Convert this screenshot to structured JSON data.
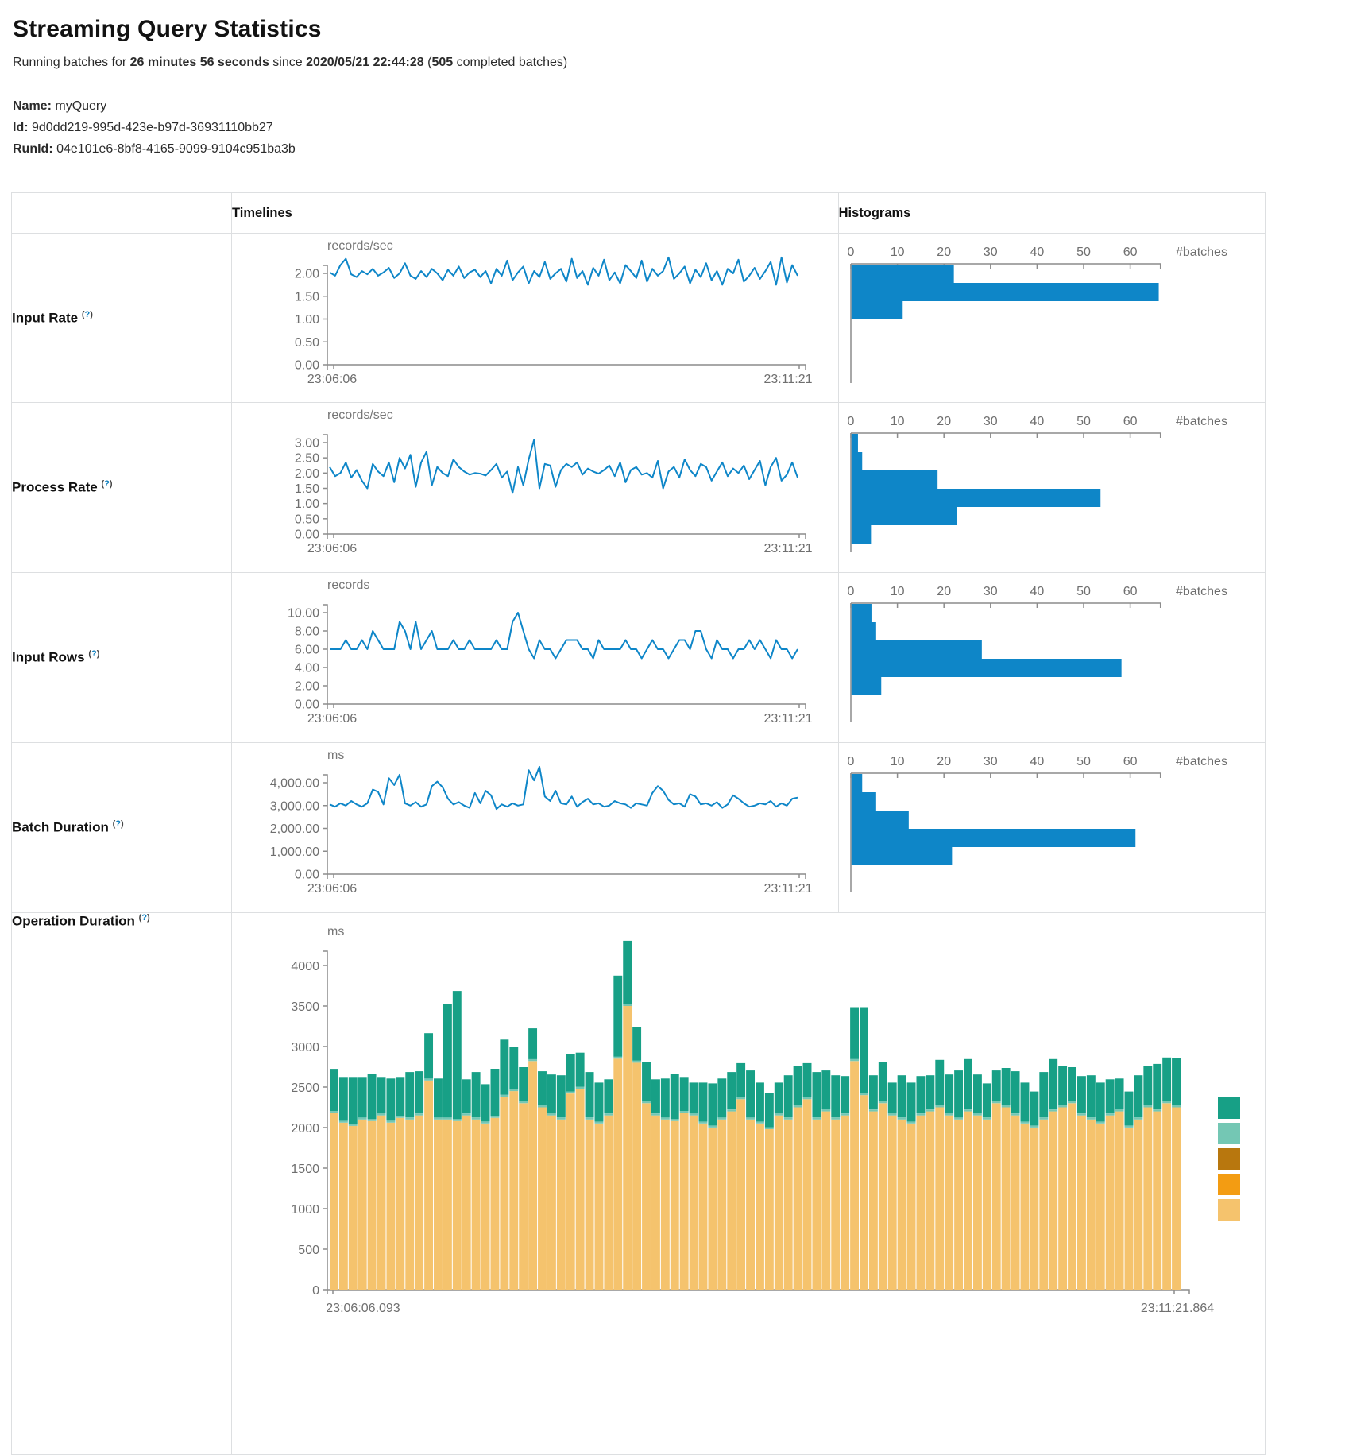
{
  "header": {
    "title": "Streaming Query Statistics",
    "running": {
      "prefix": "Running batches for ",
      "duration": "26 minutes 56 seconds",
      "since": " since ",
      "start_time": "2020/05/21 22:44:28",
      "open_paren": " (",
      "count": "505",
      "suffix": " completed batches)"
    },
    "meta": {
      "name_label": "Name:",
      "name": "myQuery",
      "id_label": "Id:",
      "id": "9d0dd219-995d-423e-b97d-36931110bb27",
      "runid_label": "RunId:",
      "runid": "04e101e6-8bf8-4165-9099-9104c951ba3b"
    }
  },
  "table": {
    "columns": {
      "timelines": "Timelines",
      "histograms": "Histograms"
    },
    "tooltip": {
      "open": "(",
      "q": "?",
      "close": ")"
    },
    "rows": [
      {
        "label": "Input Rate"
      },
      {
        "label": "Process Rate"
      },
      {
        "label": "Input Rows"
      },
      {
        "label": "Batch Duration"
      },
      {
        "label": "Operation Duration"
      }
    ]
  },
  "colors": {
    "accent": "#0e86c8",
    "axis": "#8c8c8c",
    "tick_text": "#6f6f6f",
    "bar_base": "#f5c36d",
    "bar_sliver": "#74c7b4",
    "bar_top": "#17a086",
    "legend": [
      "#17a086",
      "#74c7b4",
      "#b8770e",
      "#f39c12",
      "#f5c36d"
    ]
  },
  "chart_data": [
    {
      "id": "tl-input-rate",
      "type": "line",
      "title": "Input Rate timeline",
      "unit": "records/sec",
      "x_labels": [
        "23:06:06",
        "23:11:21"
      ],
      "y_ticks": [
        {
          "v": 0,
          "label": "0.00"
        },
        {
          "v": 0.5,
          "label": "0.50"
        },
        {
          "v": 1,
          "label": "1.00"
        },
        {
          "v": 1.5,
          "label": "1.50"
        },
        {
          "v": 2,
          "label": "2.00"
        }
      ],
      "ylim": [
        0,
        2.35
      ],
      "values": [
        2.02,
        1.95,
        2.18,
        2.32,
        1.98,
        1.92,
        2.05,
        1.98,
        2.1,
        1.95,
        2.02,
        2.12,
        1.9,
        2.0,
        2.22,
        1.95,
        1.88,
        2.05,
        1.92,
        2.1,
        2.0,
        1.85,
        2.08,
        1.95,
        2.15,
        1.9,
        2.02,
        2.08,
        1.92,
        2.05,
        1.78,
        2.1,
        1.95,
        2.28,
        1.85,
        2.02,
        2.15,
        1.78,
        2.05,
        1.92,
        2.25,
        1.88,
        2.0,
        2.1,
        1.82,
        2.32,
        1.9,
        2.05,
        1.75,
        2.12,
        1.95,
        2.3,
        1.85,
        2.02,
        1.78,
        2.18,
        2.05,
        1.9,
        2.28,
        1.82,
        2.1,
        1.95,
        2.05,
        2.35,
        1.88,
        2.0,
        2.15,
        1.78,
        2.08,
        1.92,
        2.22,
        1.85,
        2.05,
        1.75,
        2.1,
        2.0,
        2.3,
        1.82,
        1.95,
        2.12,
        1.88,
        2.05,
        2.25,
        1.75,
        2.35,
        1.8,
        2.18,
        1.95
      ]
    },
    {
      "id": "hist-input-rate",
      "type": "bar",
      "orientation": "horizontal",
      "title": "Input Rate histogram",
      "xlabel": "#batches",
      "x_ticks": [
        0,
        10,
        20,
        30,
        40,
        50,
        60
      ],
      "xlim": [
        0,
        66.5
      ],
      "bins": [
        22,
        66,
        11
      ]
    },
    {
      "id": "tl-process-rate",
      "type": "line",
      "title": "Process Rate timeline",
      "unit": "records/sec",
      "x_labels": [
        "23:06:06",
        "23:11:21"
      ],
      "y_ticks": [
        {
          "v": 0,
          "label": "0.00"
        },
        {
          "v": 0.5,
          "label": "0.50"
        },
        {
          "v": 1,
          "label": "1.00"
        },
        {
          "v": 1.5,
          "label": "1.50"
        },
        {
          "v": 2,
          "label": "2.00"
        },
        {
          "v": 2.5,
          "label": "2.50"
        },
        {
          "v": 3,
          "label": "3.00"
        }
      ],
      "ylim": [
        0,
        3.15
      ],
      "values": [
        2.2,
        1.9,
        2.0,
        2.35,
        1.85,
        2.1,
        1.75,
        1.5,
        2.3,
        2.05,
        1.9,
        2.35,
        1.7,
        2.5,
        2.15,
        2.6,
        1.55,
        2.35,
        2.7,
        1.6,
        2.2,
        2.0,
        1.9,
        2.45,
        2.2,
        2.05,
        1.95,
        2.0,
        1.98,
        1.92,
        2.1,
        2.3,
        1.85,
        2.05,
        1.35,
        2.2,
        1.6,
        2.45,
        3.1,
        1.5,
        2.3,
        2.25,
        1.55,
        2.1,
        2.3,
        2.2,
        2.35,
        1.95,
        2.15,
        2.05,
        1.98,
        2.1,
        2.25,
        1.9,
        2.35,
        1.7,
        2.1,
        2.2,
        1.95,
        2.0,
        1.85,
        2.4,
        1.5,
        2.05,
        2.2,
        1.85,
        2.45,
        2.1,
        1.9,
        2.3,
        2.2,
        1.75,
        2.05,
        2.35,
        1.9,
        2.15,
        2.0,
        2.25,
        1.8,
        2.1,
        2.4,
        1.6,
        2.2,
        2.5,
        1.75,
        1.95,
        2.35,
        1.85
      ]
    },
    {
      "id": "hist-process-rate",
      "type": "bar",
      "orientation": "horizontal",
      "title": "Process Rate histogram",
      "xlabel": "#batches",
      "x_ticks": [
        0,
        10,
        20,
        30,
        40,
        50,
        60
      ],
      "xlim": [
        0,
        66.5
      ],
      "bins": [
        1.4,
        2.3,
        18.5,
        53.5,
        22.7,
        4.2
      ]
    },
    {
      "id": "tl-input-rows",
      "type": "line",
      "title": "Input Rows timeline",
      "unit": "records",
      "x_labels": [
        "23:06:06",
        "23:11:21"
      ],
      "y_ticks": [
        {
          "v": 0,
          "label": "0.00"
        },
        {
          "v": 2,
          "label": "2.00"
        },
        {
          "v": 4,
          "label": "4.00"
        },
        {
          "v": 6,
          "label": "6.00"
        },
        {
          "v": 8,
          "label": "8.00"
        },
        {
          "v": 10,
          "label": "10.00"
        }
      ],
      "ylim": [
        0,
        10
      ],
      "values": [
        6,
        6,
        6,
        7,
        6,
        6,
        7,
        6,
        8,
        7,
        6,
        6,
        6,
        9,
        8,
        6,
        9,
        6,
        7,
        8,
        6,
        6,
        6,
        7,
        6,
        6,
        7,
        6,
        6,
        6,
        6,
        7,
        6,
        6,
        9,
        10,
        8,
        6,
        5,
        7,
        6,
        6,
        5,
        6,
        7,
        7,
        7,
        6,
        6,
        5,
        7,
        6,
        6,
        6,
        6,
        7,
        6,
        6,
        5,
        6,
        7,
        6,
        6,
        5,
        6,
        7,
        7,
        6,
        8,
        8,
        6,
        5,
        7,
        6,
        6,
        5,
        6,
        6,
        7,
        6,
        7,
        6,
        5,
        7,
        6,
        6,
        5,
        6
      ]
    },
    {
      "id": "hist-input-rows",
      "type": "bar",
      "orientation": "horizontal",
      "title": "Input Rows histogram",
      "xlabel": "#batches",
      "x_ticks": [
        0,
        10,
        20,
        30,
        40,
        50,
        60
      ],
      "xlim": [
        0,
        66.5
      ],
      "bins": [
        4.3,
        5.3,
        28,
        58,
        6.4
      ]
    },
    {
      "id": "tl-batch-duration",
      "type": "line",
      "title": "Batch Duration timeline",
      "unit": "ms",
      "x_labels": [
        "23:06:06",
        "23:11:21"
      ],
      "y_ticks": [
        {
          "v": 0,
          "label": "0.00"
        },
        {
          "v": 1000,
          "label": "1,000.00"
        },
        {
          "v": 2000,
          "label": "2,000.00"
        },
        {
          "v": 3000,
          "label": "3,000.00"
        },
        {
          "v": 4000,
          "label": "4,000.00"
        }
      ],
      "ylim": [
        0,
        4700
      ],
      "values": [
        3050,
        2950,
        3100,
        3000,
        3200,
        3050,
        2950,
        3100,
        3700,
        3600,
        3050,
        4200,
        3900,
        4350,
        3100,
        3000,
        3150,
        2950,
        3050,
        3850,
        4050,
        3800,
        3300,
        3050,
        3150,
        3000,
        2900,
        3550,
        3100,
        3650,
        3450,
        2850,
        3050,
        2950,
        3100,
        3000,
        3050,
        4550,
        4100,
        4700,
        3400,
        3200,
        3650,
        3100,
        3050,
        3400,
        2950,
        3150,
        3300,
        3050,
        3100,
        2950,
        3000,
        3200,
        3100,
        3050,
        2900,
        3100,
        3050,
        3000,
        3550,
        3850,
        3650,
        3250,
        3050,
        3100,
        2950,
        3500,
        3400,
        3050,
        3100,
        3000,
        3150,
        2900,
        3050,
        3450,
        3300,
        3100,
        2950,
        3000,
        3100,
        3050,
        3200,
        2950,
        3100,
        3000,
        3300,
        3350
      ]
    },
    {
      "id": "hist-batch-duration",
      "type": "bar",
      "orientation": "horizontal",
      "title": "Batch Duration histogram",
      "xlabel": "#batches",
      "x_ticks": [
        0,
        10,
        20,
        30,
        40,
        50,
        60
      ],
      "xlim": [
        0,
        66.5
      ],
      "bins": [
        2.3,
        5.3,
        12.3,
        61,
        21.6
      ]
    },
    {
      "id": "op-duration",
      "type": "stacked-bar",
      "title": "Operation Duration",
      "unit": "ms",
      "x_labels": [
        "23:06:06.093",
        "23:11:21.864"
      ],
      "y_ticks": [
        {
          "v": 0,
          "label": "0"
        },
        {
          "v": 500,
          "label": "500"
        },
        {
          "v": 1000,
          "label": "1000"
        },
        {
          "v": 1500,
          "label": "1500"
        },
        {
          "v": 2000,
          "label": "2000"
        },
        {
          "v": 2500,
          "label": "2500"
        },
        {
          "v": 3000,
          "label": "3000"
        },
        {
          "v": 3500,
          "label": "3500"
        },
        {
          "v": 4000,
          "label": "4000"
        }
      ],
      "ylim": [
        0,
        4350
      ],
      "legend_swatches": 5,
      "segments": {
        "base": [
          2180,
          2060,
          2020,
          2100,
          2080,
          2150,
          2060,
          2120,
          2100,
          2150,
          2580,
          2100,
          2100,
          2080,
          2150,
          2100,
          2050,
          2120,
          2380,
          2450,
          2300,
          2820,
          2250,
          2150,
          2100,
          2420,
          2480,
          2100,
          2050,
          2150,
          2850,
          3500,
          2800,
          2300,
          2150,
          2100,
          2080,
          2180,
          2150,
          2050,
          2000,
          2100,
          2200,
          2350,
          2100,
          2050,
          1980,
          2150,
          2100,
          2250,
          2350,
          2100,
          2200,
          2100,
          2150,
          2820,
          2400,
          2200,
          2300,
          2150,
          2100,
          2050,
          2150,
          2200,
          2250,
          2150,
          2100,
          2200,
          2150,
          2100,
          2300,
          2250,
          2150,
          2050,
          2000,
          2100,
          2200,
          2250,
          2300,
          2150,
          2100,
          2050,
          2150,
          2200,
          2000,
          2100,
          2250,
          2200,
          2300,
          2250
        ],
        "sliver": 25,
        "top": [
          520,
          540,
          580,
          500,
          560,
          450,
          520,
          480,
          560,
          520,
          560,
          480,
          1400,
          1580,
          420,
          560,
          460,
          580,
          680,
          520,
          420,
          380,
          420,
          480,
          520,
          460,
          420,
          560,
          480,
          420,
          1000,
          780,
          420,
          480,
          420,
          480,
          560,
          420,
          380,
          480,
          520,
          480,
          460,
          420,
          580,
          480,
          420,
          380,
          520,
          480,
          420,
          560,
          480,
          520,
          460,
          640,
          1060,
          420,
          480,
          380,
          520,
          480,
          460,
          420,
          560,
          480,
          580,
          620,
          480,
          420,
          380,
          460,
          520,
          480,
          420,
          560,
          620,
          480,
          420,
          460,
          520,
          480,
          420,
          380,
          420,
          520,
          480,
          560,
          540,
          580
        ]
      }
    }
  ]
}
